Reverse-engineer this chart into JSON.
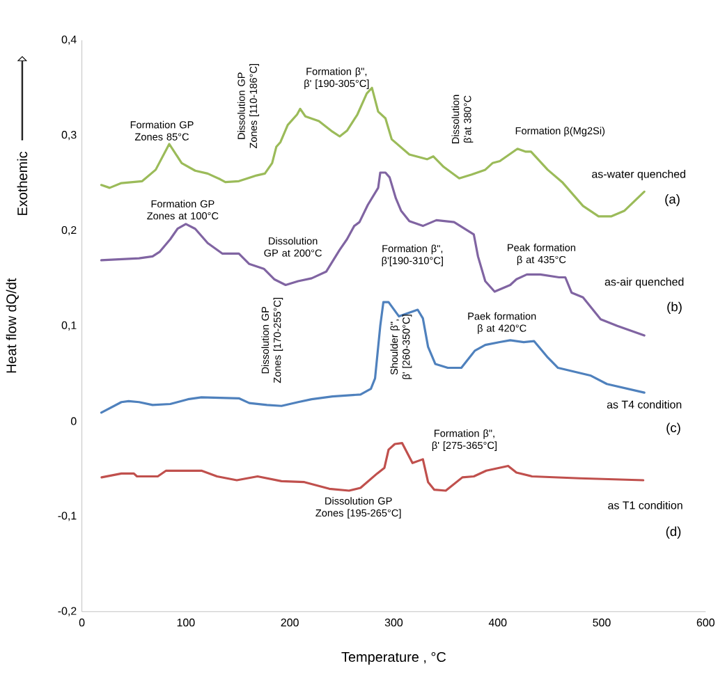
{
  "chart_data": {
    "type": "line",
    "xlabel": "Temperature , °C",
    "ylabel": "Heat flow dQ/dt",
    "xlim": [
      0,
      600
    ],
    "ylim": [
      -0.2,
      0.4
    ],
    "xticks": [
      0,
      100,
      200,
      300,
      400,
      500,
      600
    ],
    "yticks": [
      {
        "value": -0.2,
        "label": "-0,2"
      },
      {
        "value": -0.1,
        "label": "-0,1"
      },
      0,
      {
        "value": 0.1,
        "label": "0,1"
      },
      {
        "value": 0.2,
        "label": "0,2"
      },
      {
        "value": 0.3,
        "label": "0,3"
      },
      {
        "value": 0.4,
        "label": "0,4"
      }
    ],
    "grid": false,
    "marker": "none",
    "series": [
      {
        "name": "as-water quenched",
        "color": "#9bbb59",
        "x": [
          18.7,
          26.7,
          38,
          58,
          71,
          84,
          96,
          109,
          121,
          133,
          138,
          151,
          168,
          176,
          183,
          187,
          191,
          198,
          207,
          210,
          215,
          228,
          241,
          248,
          255,
          265,
          274,
          279,
          285,
          292,
          298,
          315,
          332,
          338,
          348,
          363,
          375,
          388,
          395,
          402,
          419,
          427,
          432,
          448,
          462,
          482,
          497,
          509,
          522,
          541
        ],
        "values": [
          0.248,
          0.245,
          0.25,
          0.252,
          0.264,
          0.291,
          0.271,
          0.263,
          0.26,
          0.254,
          0.251,
          0.252,
          0.258,
          0.26,
          0.271,
          0.288,
          0.293,
          0.311,
          0.322,
          0.328,
          0.32,
          0.315,
          0.304,
          0.299,
          0.305,
          0.322,
          0.344,
          0.35,
          0.325,
          0.318,
          0.296,
          0.28,
          0.275,
          0.278,
          0.267,
          0.255,
          0.259,
          0.264,
          0.271,
          0.273,
          0.286,
          0.283,
          0.283,
          0.264,
          0.251,
          0.226,
          0.215,
          0.215,
          0.221,
          0.241
        ]
      },
      {
        "name": "as-air quenched",
        "color": "#8064a2",
        "x": [
          18.7,
          55,
          68,
          75,
          85,
          92,
          100,
          109,
          121,
          135,
          151,
          161,
          175,
          185,
          196,
          208,
          221,
          235,
          248,
          255,
          262,
          267,
          275,
          285,
          287,
          292,
          296,
          302,
          307,
          315,
          328,
          341,
          358,
          377,
          381,
          388,
          397,
          412,
          418,
          428,
          441,
          459,
          465,
          471,
          482,
          499,
          515,
          541
        ],
        "values": [
          0.169,
          0.171,
          0.173,
          0.178,
          0.191,
          0.202,
          0.207,
          0.202,
          0.187,
          0.176,
          0.176,
          0.165,
          0.16,
          0.149,
          0.143,
          0.147,
          0.15,
          0.157,
          0.18,
          0.191,
          0.205,
          0.209,
          0.227,
          0.245,
          0.261,
          0.261,
          0.256,
          0.234,
          0.221,
          0.21,
          0.205,
          0.211,
          0.209,
          0.196,
          0.173,
          0.147,
          0.136,
          0.143,
          0.149,
          0.154,
          0.154,
          0.151,
          0.151,
          0.135,
          0.13,
          0.107,
          0.1,
          0.09
        ]
      },
      {
        "name": "as T4 condition",
        "color": "#4f81bd",
        "x": [
          18.7,
          38,
          45,
          55,
          68,
          85,
          92,
          102,
          115,
          151,
          161,
          178,
          192,
          208,
          221,
          241,
          268,
          278,
          282,
          287,
          290,
          295,
          305,
          315,
          323,
          328,
          333,
          340,
          352,
          365,
          378,
          388,
          402,
          412,
          425,
          435,
          448,
          458,
          489,
          505,
          541
        ],
        "values": [
          0.009,
          0.02,
          0.021,
          0.02,
          0.017,
          0.018,
          0.02,
          0.023,
          0.025,
          0.024,
          0.019,
          0.017,
          0.016,
          0.02,
          0.023,
          0.026,
          0.028,
          0.034,
          0.045,
          0.1,
          0.125,
          0.125,
          0.11,
          0.114,
          0.117,
          0.108,
          0.078,
          0.06,
          0.056,
          0.056,
          0.074,
          0.08,
          0.083,
          0.085,
          0.083,
          0.084,
          0.067,
          0.056,
          0.048,
          0.039,
          0.03
        ]
      },
      {
        "name": "as T1 condition",
        "color": "#c0504d",
        "x": [
          19,
          38,
          50,
          53,
          73,
          81,
          96,
          115,
          130,
          149,
          169,
          192,
          214,
          238,
          257,
          268,
          284,
          291,
          295,
          301,
          308,
          318,
          328,
          333,
          339,
          350,
          366,
          377,
          389,
          410,
          418,
          433,
          479,
          540
        ],
        "values": [
          -0.059,
          -0.055,
          -0.055,
          -0.058,
          -0.058,
          -0.052,
          -0.052,
          -0.052,
          -0.058,
          -0.062,
          -0.058,
          -0.063,
          -0.064,
          -0.071,
          -0.073,
          -0.07,
          -0.055,
          -0.049,
          -0.03,
          -0.024,
          -0.023,
          -0.044,
          -0.04,
          -0.064,
          -0.072,
          -0.073,
          -0.059,
          -0.058,
          -0.052,
          -0.047,
          -0.054,
          -0.058,
          -0.06,
          -0.062
        ]
      }
    ],
    "annotations": [
      "Formation GP Zones 85°C",
      "Dissolution GP Zones [110-186°C]",
      "Formation β\", β' [190-305°C]",
      "Dissolution β'at 380°C",
      "Formation β(Mg2Si)",
      "(a)",
      "Formation GP Zones at 100°C",
      "Dissolution GP at 200°C",
      "Formation β\", β'[190-310°C]",
      "Peak formation β at 435°C",
      "(b)",
      "Dissolution GP Zones [170-255°C]",
      "Shoulder β\", β' [260-350°C]",
      "Paek formation β at 420°C",
      "(c)",
      "Formation β\", β' [275-365°C]",
      "Dissolution GP Zones [195-265°C]",
      "(d)",
      "Exothemic"
    ]
  }
}
